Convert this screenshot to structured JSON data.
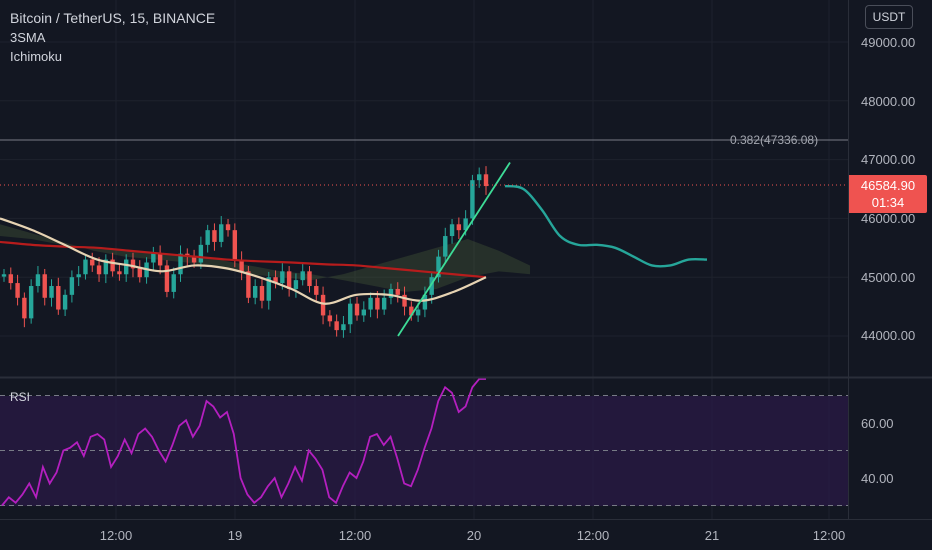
{
  "header": {
    "symbol_title": "Bitcoin / TetherUS, 15, BINANCE",
    "indicator_sma": "3SMA",
    "indicator_ichimoku": "Ichimoku"
  },
  "price_axis": {
    "currency_button": "USDT",
    "ticks": [
      "49000.00",
      "48000.00",
      "47000.00",
      "46000.00",
      "45000.00",
      "44000.00"
    ]
  },
  "rsi_pane": {
    "label": "RSI",
    "ticks": [
      "60.00",
      "40.00"
    ]
  },
  "time_axis": {
    "ticks": [
      "12:00",
      "19",
      "12:00",
      "20",
      "12:00",
      "21",
      "12:00"
    ]
  },
  "fib_label": "0.382(47336.08)",
  "last_price": {
    "value": "46584.90",
    "countdown": "01:34"
  },
  "colors": {
    "background": "#131722",
    "candle_up": "#26a69a",
    "candle_down": "#ef5350",
    "sma_long": "#b71c1c",
    "sma_mid": "#e6d3b3",
    "trendline": "#3ddc97",
    "projection": "#26a69a",
    "rsi_line": "#b41fbf",
    "rsi_band": "#2a1a45"
  },
  "chart_data": [
    {
      "type": "candlestick",
      "title": "Bitcoin / TetherUS, 15, BINANCE",
      "interval": "15",
      "ylim": [
        43700,
        49600
      ],
      "y_ticks": [
        44000,
        45000,
        46000,
        47000,
        48000,
        49000
      ],
      "x_ticks": [
        "12:00",
        "19",
        "12:00",
        "20",
        "12:00",
        "21",
        "12:00"
      ],
      "last_price": 46584.9,
      "fib_level": {
        "ratio": 0.382,
        "price": 47336.08
      },
      "price_series": [
        45050,
        44900,
        44650,
        44300,
        44850,
        45050,
        44650,
        44850,
        44450,
        44700,
        45000,
        45050,
        45300,
        45200,
        45050,
        45300,
        45100,
        45050,
        45300,
        45150,
        45000,
        45250,
        45400,
        45200,
        44750,
        45050,
        45400,
        45350,
        45250,
        45550,
        45800,
        45600,
        45900,
        45800,
        45300,
        45100,
        44650,
        44850,
        44600,
        45000,
        44900,
        45100,
        44800,
        44950,
        45100,
        44850,
        44700,
        44350,
        44250,
        44100,
        44200,
        44550,
        44350,
        44450,
        44650,
        44450,
        44650,
        44800,
        44700,
        44500,
        44350,
        44450,
        44700,
        45000,
        45350,
        45700,
        45900,
        45800,
        46000,
        46650,
        46750,
        46550
      ],
      "sma_long": [
        45600,
        45550,
        45520,
        45500,
        45450,
        45400,
        45350,
        45300,
        45270,
        45250,
        45220,
        45200,
        45150,
        45100,
        45050,
        45000
      ],
      "sma_mid": [
        46000,
        45800,
        45550,
        45300,
        45200,
        45100,
        45200,
        45150,
        45000,
        44800,
        44550,
        44700,
        44700,
        44600,
        44750,
        45000
      ],
      "projection_path": [
        46550,
        46500,
        46150,
        45700,
        45550,
        45550,
        45500,
        45350,
        45200,
        45200,
        45300,
        45300
      ],
      "trendline": {
        "from": 44000,
        "to": 46950
      }
    },
    {
      "type": "line",
      "title": "RSI",
      "ylim": [
        27,
        78
      ],
      "y_ticks": [
        40,
        60
      ],
      "bands": [
        70,
        50,
        30
      ],
      "values": [
        30,
        33,
        31,
        34,
        38,
        33,
        44,
        38,
        42,
        50,
        51,
        53,
        48,
        55,
        56,
        54,
        44,
        48,
        54,
        49,
        56,
        58,
        55,
        50,
        46,
        52,
        59,
        61,
        55,
        59,
        68,
        66,
        62,
        64,
        56,
        40,
        34,
        31,
        33,
        37,
        40,
        33,
        38,
        44,
        39,
        50,
        47,
        43,
        33,
        31,
        37,
        42,
        40,
        46,
        55,
        56,
        52,
        55,
        47,
        38,
        37,
        43,
        51,
        58,
        68,
        73,
        71,
        64,
        66,
        73,
        79,
        76
      ]
    }
  ]
}
